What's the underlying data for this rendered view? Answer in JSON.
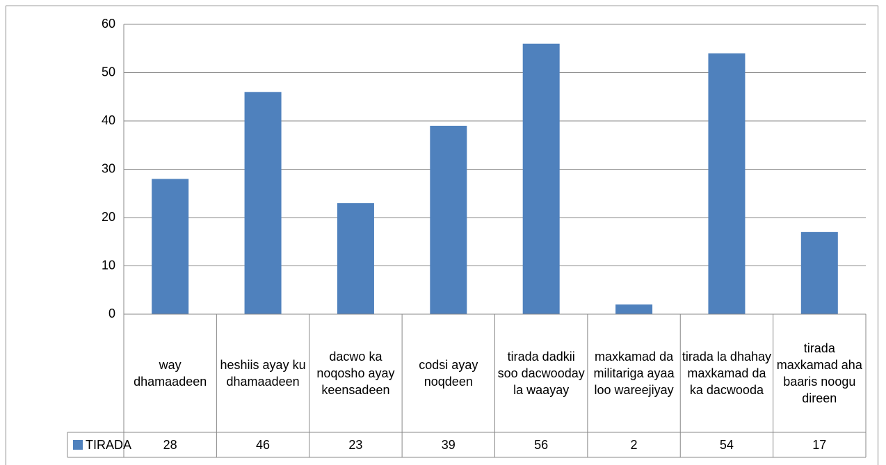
{
  "chart_data": {
    "type": "bar",
    "categories": [
      "way dhamaadeen",
      "heshiis ayay ku dhamaadeen",
      "dacwo ka noqosho ayay keensadeen",
      "codsi ayay noqdeen",
      "tirada dadkii soo dacwooday la waayay",
      "maxkamad da militariga ayaa loo wareejiyay",
      "tirada la dhahay maxkamad da ka dacwooda",
      "tirada maxkamad aha baaris noogu direen"
    ],
    "series": [
      {
        "name": "TIRADA",
        "color": "#4f81bd",
        "values": [
          28,
          46,
          23,
          39,
          56,
          2,
          54,
          17
        ]
      }
    ],
    "ylim": [
      0,
      60
    ],
    "yticks": [
      0,
      10,
      20,
      30,
      40,
      50,
      60
    ],
    "grid": true,
    "data_table": true
  }
}
